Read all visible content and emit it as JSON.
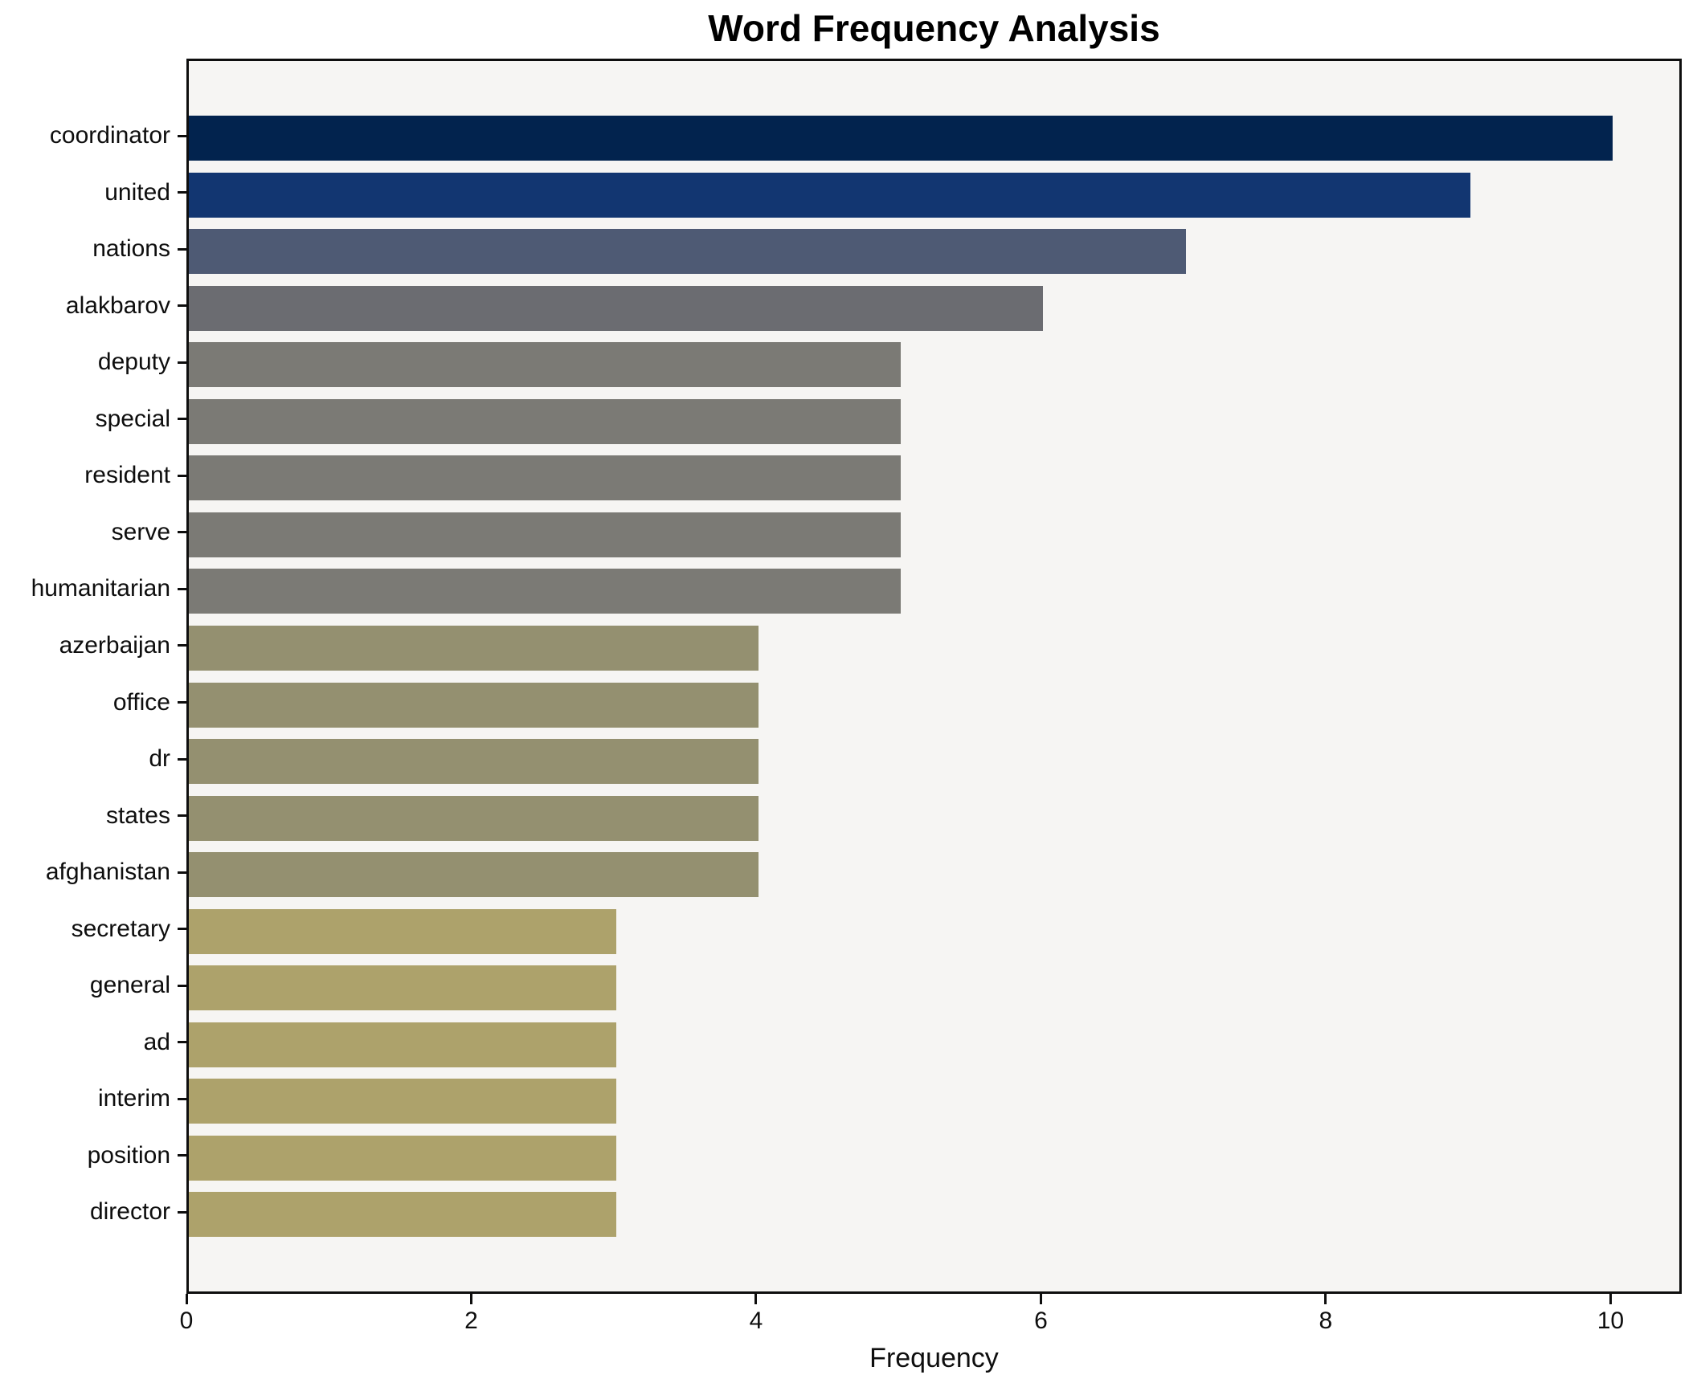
{
  "title": "Word Frequency Analysis",
  "chart_data": {
    "type": "bar",
    "orientation": "horizontal",
    "title": "Word Frequency Analysis",
    "xlabel": "Frequency",
    "ylabel": "",
    "xlim": [
      0,
      10.5
    ],
    "xticks": [
      0,
      2,
      4,
      6,
      8,
      10
    ],
    "grid": false,
    "legend": false,
    "plot_background": "#f6f5f3",
    "figure_background": "#ffffff",
    "axis_color": "#0e0e0e",
    "categories": [
      "coordinator",
      "united",
      "nations",
      "alakbarov",
      "deputy",
      "special",
      "resident",
      "serve",
      "humanitarian",
      "azerbaijan",
      "office",
      "dr",
      "states",
      "afghanistan",
      "secretary",
      "general",
      "ad",
      "interim",
      "position",
      "director"
    ],
    "values": [
      10,
      9,
      7,
      6,
      5,
      5,
      5,
      5,
      5,
      4,
      4,
      4,
      4,
      4,
      3,
      3,
      3,
      3,
      3,
      3
    ],
    "bar_colors": [
      "#02234e",
      "#123671",
      "#4e5a74",
      "#6b6c71",
      "#7b7a75",
      "#7b7a75",
      "#7b7a75",
      "#7b7a75",
      "#7b7a75",
      "#949070",
      "#949070",
      "#949070",
      "#949070",
      "#949070",
      "#ada26b",
      "#ada26b",
      "#ada26b",
      "#ada26b",
      "#ada26b",
      "#ada26b"
    ]
  }
}
